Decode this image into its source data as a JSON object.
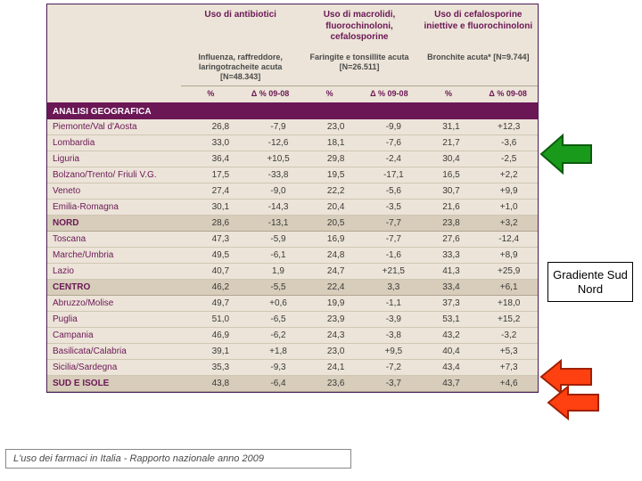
{
  "table": {
    "headers": [
      "Uso di antibiotici",
      "Uso di macrolidi, fluorochinoloni, cefalosporine",
      "Uso di cefalosporine iniettive e fluorochinoloni"
    ],
    "subheaders": [
      "Influenza, raffreddore, laringotracheite acuta [N=48.343]",
      "Faringite e tonsillite acuta [N=26.511]",
      "Bronchite acuta* [N=9.744]"
    ],
    "pctLabels": {
      "pct": "%",
      "delta": "Δ % 09-08"
    },
    "sectionTitle": "ANALISI GEOGRAFICA",
    "rows": [
      {
        "label": "Piemonte/Val d'Aosta",
        "v": [
          "26,8",
          "-7,9",
          "23,0",
          "-9,9",
          "31,1",
          "+12,3"
        ],
        "type": "data"
      },
      {
        "label": "Lombardia",
        "v": [
          "33,0",
          "-12,6",
          "18,1",
          "-7,6",
          "21,7",
          "-3,6"
        ],
        "type": "data"
      },
      {
        "label": "Liguria",
        "v": [
          "36,4",
          "+10,5",
          "29,8",
          "-2,4",
          "30,4",
          "-2,5"
        ],
        "type": "data"
      },
      {
        "label": "Bolzano/Trento/ Friuli V.G.",
        "v": [
          "17,5",
          "-33,8",
          "19,5",
          "-17,1",
          "16,5",
          "+2,2"
        ],
        "type": "data"
      },
      {
        "label": "Veneto",
        "v": [
          "27,4",
          "-9,0",
          "22,2",
          "-5,6",
          "30,7",
          "+9,9"
        ],
        "type": "data"
      },
      {
        "label": "Emilia-Romagna",
        "v": [
          "30,1",
          "-14,3",
          "20,4",
          "-3,5",
          "21,6",
          "+1,0"
        ],
        "type": "data"
      },
      {
        "label": "NORD",
        "v": [
          "28,6",
          "-13,1",
          "20,5",
          "-7,7",
          "23,8",
          "+3,2"
        ],
        "type": "summary"
      },
      {
        "label": "Toscana",
        "v": [
          "47,3",
          "-5,9",
          "16,9",
          "-7,7",
          "27,6",
          "-12,4"
        ],
        "type": "data"
      },
      {
        "label": "Marche/Umbria",
        "v": [
          "49,5",
          "-6,1",
          "24,8",
          "-1,6",
          "33,3",
          "+8,9"
        ],
        "type": "data"
      },
      {
        "label": "Lazio",
        "v": [
          "40,7",
          "1,9",
          "24,7",
          "+21,5",
          "41,3",
          "+25,9"
        ],
        "type": "data"
      },
      {
        "label": "CENTRO",
        "v": [
          "46,2",
          "-5,5",
          "22,4",
          "3,3",
          "33,4",
          "+6,1"
        ],
        "type": "summary"
      },
      {
        "label": "Abruzzo/Molise",
        "v": [
          "49,7",
          "+0,6",
          "19,9",
          "-1,1",
          "37,3",
          "+18,0"
        ],
        "type": "data"
      },
      {
        "label": "Puglia",
        "v": [
          "51,0",
          "-6,5",
          "23,9",
          "-3,9",
          "53,1",
          "+15,2"
        ],
        "type": "data"
      },
      {
        "label": "Campania",
        "v": [
          "46,9",
          "-6,2",
          "24,3",
          "-3,8",
          "43,2",
          "-3,2"
        ],
        "type": "data"
      },
      {
        "label": "Basilicata/Calabria",
        "v": [
          "39,1",
          "+1,8",
          "23,0",
          "+9,5",
          "40,4",
          "+5,3"
        ],
        "type": "data"
      },
      {
        "label": "Sicilia/Sardegna",
        "v": [
          "35,3",
          "-9,3",
          "24,1",
          "-7,2",
          "43,4",
          "+7,3"
        ],
        "type": "data"
      },
      {
        "label": "SUD E ISOLE",
        "v": [
          "43,8",
          "-6,4",
          "23,6",
          "-3,7",
          "43,7",
          "+4,6"
        ],
        "type": "summary"
      }
    ]
  },
  "callout": "Gradiente Sud Nord",
  "footnote": "L'uso dei farmaci in Italia - Rapporto nazionale anno 2009",
  "colors": {
    "headerText": "#6b1756",
    "band": "#6b1756",
    "bgTable": "#ece4d8",
    "summaryBg": "#d7cdba",
    "green": "#1a9a1a",
    "greenStroke": "#0c5c0c",
    "red": "#ff4010",
    "redStroke": "#a02000"
  }
}
